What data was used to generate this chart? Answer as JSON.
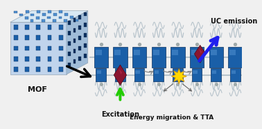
{
  "bg_color": "#f0f0f0",
  "mof_bar_color": "#1a5fa8",
  "mof_bar_dark": "#0a3060",
  "mof_bar_light": "#5090d0",
  "mof_frame_color": "#c8d8e8",
  "mof_top_color": "#d8e8f4",
  "mof_right_color": "#a0bcd8",
  "mof_front_color": "#c0d4ec",
  "linker_color": "#b8c4cc",
  "linker_dot_color": "#a0aaaa",
  "bar_color_mid": "#1a5fa8",
  "bar_color_dark": "#0a3060",
  "bar_color_light": "#5090d0",
  "sensitizer_color": "#8b1530",
  "star_color": "#ffd700",
  "arrow_green": "#22cc00",
  "arrow_blue": "#2020ee",
  "arrow_gray": "#888888",
  "arrow_black": "#111111",
  "text_color": "#111111",
  "label_excitation": "Excitation",
  "label_energy": "Energy migration & TTA",
  "label_uc": "UC emission",
  "label_mof": "MOF"
}
